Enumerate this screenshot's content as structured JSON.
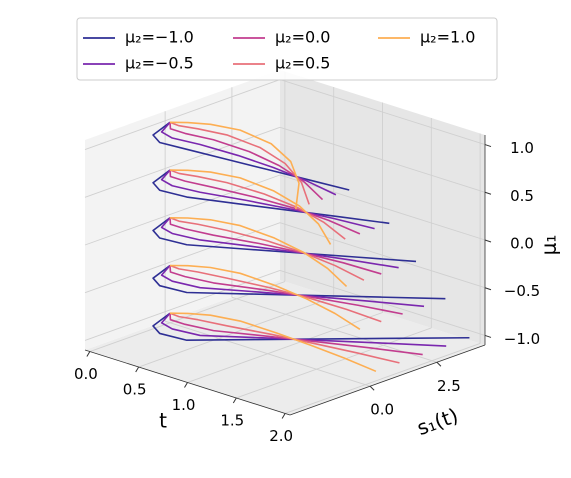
{
  "chart_data": {
    "type": "line3d",
    "xlabel": "t",
    "ylabel": "s₁(t)",
    "zlabel": "μ₁",
    "xlim": [
      -0.05,
      2.05
    ],
    "ylim": [
      -3,
      4.3
    ],
    "zlim": [
      -1.1,
      1.1
    ],
    "xticks": [
      {
        "value": 0,
        "label": "0.0"
      },
      {
        "value": 0.5,
        "label": "0.5"
      },
      {
        "value": 1,
        "label": "1.0"
      },
      {
        "value": 1.5,
        "label": "1.5"
      },
      {
        "value": 2,
        "label": "2.0"
      }
    ],
    "yticks": [
      {
        "value": 0,
        "label": "0.0"
      },
      {
        "value": 2.5,
        "label": "2.5"
      }
    ],
    "zticks": [
      {
        "value": -1,
        "label": "−1.0"
      },
      {
        "value": -0.5,
        "label": "−0.5"
      },
      {
        "value": 0,
        "label": "0.0"
      },
      {
        "value": 0.5,
        "label": "0.5"
      },
      {
        "value": 1,
        "label": "1.0"
      }
    ],
    "grid": true,
    "legend": "upper center",
    "x": [
      0,
      0.1,
      0.25,
      0.5,
      0.875,
      1.25,
      1.625,
      2
    ],
    "z": [
      -1,
      -0.5,
      0,
      0.5,
      1
    ],
    "series": [
      {
        "name": "μ₂=−1.0",
        "color": "#2e2f94",
        "values": [
          [
            0,
            -1,
            -1.3,
            -1.2,
            0.08,
            1.35,
            2.63,
            3.9
          ],
          [
            0,
            -1,
            -1.3,
            -1.2,
            -0.15,
            0.9,
            1.95,
            3.0
          ],
          [
            0,
            -1,
            -1.3,
            -1.2,
            -0.43,
            0.35,
            1.13,
            1.9
          ],
          [
            0,
            -1,
            -1.3,
            -1.2,
            -0.68,
            -0.15,
            0.38,
            0.9
          ],
          [
            0,
            -1,
            -1.3,
            -1.2,
            -1.05,
            -0.9,
            -0.75,
            -0.6
          ]
        ]
      },
      {
        "name": "μ₂=−0.5",
        "color": "#7a27ae",
        "values": [
          [
            0,
            -0.68,
            -0.83,
            -0.7,
            0.26,
            1.19,
            2.12,
            3.03
          ],
          [
            0,
            -0.68,
            -0.83,
            -0.7,
            0.07,
            0.81,
            1.52,
            2.2
          ],
          [
            0,
            -0.68,
            -0.83,
            -0.7,
            -0.15,
            0.37,
            0.84,
            1.25
          ],
          [
            0,
            -0.68,
            -0.83,
            -0.7,
            -0.34,
            -0.04,
            0.19,
            0.35
          ],
          [
            0,
            -0.68,
            -0.83,
            -0.7,
            -0.64,
            -0.69,
            -0.84,
            -1.1
          ]
        ]
      },
      {
        "name": "μ₂=0.0",
        "color": "#c23d8f",
        "values": [
          [
            0,
            -0.35,
            -0.35,
            -0.2,
            0.43,
            1.03,
            1.61,
            2.15
          ],
          [
            0,
            -0.35,
            -0.35,
            -0.2,
            0.3,
            0.73,
            1.1,
            1.4
          ],
          [
            0,
            -0.35,
            -0.35,
            -0.2,
            0.14,
            0.39,
            0.55,
            0.6
          ],
          [
            0,
            -0.35,
            -0.35,
            -0.2,
            -0.01,
            0.07,
            0,
            -0.2
          ],
          [
            0,
            -0.35,
            -0.35,
            -0.2,
            -0.23,
            -0.48,
            -0.93,
            -1.6
          ]
        ]
      },
      {
        "name": "μ₂=0.5",
        "color": "#e8707a",
        "values": [
          [
            0,
            -0.03,
            0.13,
            0.3,
            0.61,
            0.86,
            1.09,
            1.28
          ],
          [
            0,
            -0.03,
            0.13,
            0.3,
            0.52,
            0.64,
            0.67,
            0.6
          ],
          [
            0,
            -0.03,
            0.13,
            0.3,
            0.43,
            0.41,
            0.25,
            -0.05
          ],
          [
            0,
            -0.03,
            0.13,
            0.3,
            0.33,
            0.17,
            -0.19,
            -0.75
          ],
          [
            0,
            -0.03,
            0.13,
            0.3,
            0.18,
            -0.26,
            -1.02,
            -2.1
          ]
        ]
      },
      {
        "name": "μ₂=1.0",
        "color": "#fdae52",
        "values": [
          [
            0,
            0.3,
            0.6,
            0.8,
            0.78,
            0.7,
            0.58,
            0.4
          ],
          [
            0,
            0.3,
            0.6,
            0.8,
            0.74,
            0.55,
            0.24,
            -0.2
          ],
          [
            0,
            0.3,
            0.6,
            0.8,
            0.71,
            0.43,
            -0.04,
            -0.7
          ],
          [
            0,
            0.3,
            0.6,
            0.8,
            0.67,
            0.28,
            -0.38,
            -1.3
          ],
          [
            0,
            0.3,
            0.6,
            0.8,
            0.59,
            -0.05,
            -1.11,
            -2.6
          ]
        ]
      }
    ]
  }
}
